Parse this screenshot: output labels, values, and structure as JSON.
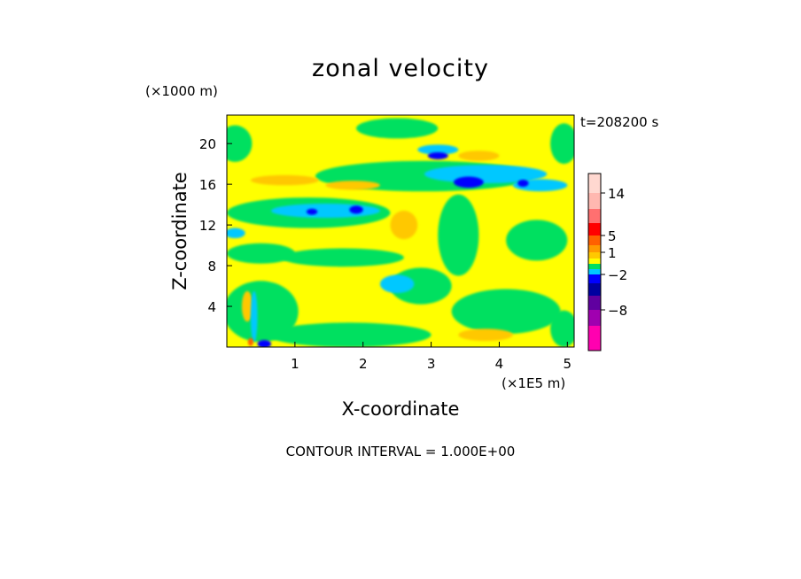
{
  "chart_data": {
    "type": "heatmap",
    "title": "zonal velocity",
    "xlabel": "X-coordinate",
    "ylabel": "Z-coordinate",
    "x_unit": "(×1E5 m)",
    "y_unit": "(×1000 m)",
    "time_label": "t=208200 s",
    "footer": "CONTOUR INTERVAL = 1.000E+00",
    "xlim": [
      0,
      5.1
    ],
    "ylim": [
      0,
      22.8
    ],
    "x_ticks": [
      {
        "value": 1,
        "label": "1"
      },
      {
        "value": 2,
        "label": "2"
      },
      {
        "value": 3,
        "label": "3"
      },
      {
        "value": 4,
        "label": "4"
      },
      {
        "value": 5,
        "label": "5"
      }
    ],
    "y_ticks": [
      {
        "value": 4,
        "label": "4"
      },
      {
        "value": 8,
        "label": "8"
      },
      {
        "value": 12,
        "label": "12"
      },
      {
        "value": 16,
        "label": "16"
      },
      {
        "value": 20,
        "label": "20"
      }
    ],
    "background_level_color": "#FFFF00",
    "colorbar": {
      "levels": [
        {
          "color": "#FFD8D0"
        },
        {
          "color": "#FFB8B0"
        },
        {
          "color": "#FF7070"
        },
        {
          "color": "#FF0000"
        },
        {
          "color": "#FF6000"
        },
        {
          "color": "#FF9A00"
        },
        {
          "color": "#FFC800"
        },
        {
          "color": "#FFFF00"
        },
        {
          "color": "#00E060"
        },
        {
          "color": "#00C8FF"
        },
        {
          "color": "#0000FF"
        },
        {
          "color": "#0000A0"
        },
        {
          "color": "#6000A0"
        },
        {
          "color": "#A000B0"
        },
        {
          "color": "#FF00B0"
        }
      ],
      "labels": [
        {
          "value": 14,
          "label": "14"
        },
        {
          "value": 5,
          "label": "5"
        },
        {
          "value": 1,
          "label": "1"
        },
        {
          "value": -2,
          "label": "−2"
        },
        {
          "value": -8,
          "label": "−8"
        }
      ]
    },
    "regions": [
      {
        "level": "green",
        "color": "#00E060",
        "x": 0.12,
        "z": 20.0,
        "rx": 0.25,
        "rz": 1.8
      },
      {
        "level": "green",
        "color": "#00E060",
        "x": 2.5,
        "z": 21.5,
        "rx": 0.6,
        "rz": 1.0
      },
      {
        "level": "green",
        "color": "#00E060",
        "x": 4.95,
        "z": 20.0,
        "rx": 0.2,
        "rz": 2.0
      },
      {
        "level": "green",
        "color": "#00E060",
        "x": 2.9,
        "z": 16.8,
        "rx": 1.6,
        "rz": 1.5
      },
      {
        "level": "green",
        "color": "#00E060",
        "x": 1.2,
        "z": 13.2,
        "rx": 1.2,
        "rz": 1.5
      },
      {
        "level": "green",
        "color": "#00E060",
        "x": 0.5,
        "z": 9.2,
        "rx": 0.5,
        "rz": 1.0
      },
      {
        "level": "green",
        "color": "#00E060",
        "x": 1.7,
        "z": 8.8,
        "rx": 0.9,
        "rz": 0.9
      },
      {
        "level": "green",
        "color": "#00E060",
        "x": 3.4,
        "z": 11.0,
        "rx": 0.3,
        "rz": 4.0
      },
      {
        "level": "green",
        "color": "#00E060",
        "x": 4.55,
        "z": 10.5,
        "rx": 0.45,
        "rz": 2.0
      },
      {
        "level": "green",
        "color": "#00E060",
        "x": 0.5,
        "z": 3.5,
        "rx": 0.55,
        "rz": 3.0
      },
      {
        "level": "green",
        "color": "#00E060",
        "x": 1.8,
        "z": 1.2,
        "rx": 1.2,
        "rz": 1.2
      },
      {
        "level": "green",
        "color": "#00E060",
        "x": 2.85,
        "z": 6.0,
        "rx": 0.45,
        "rz": 1.8
      },
      {
        "level": "green",
        "color": "#00E060",
        "x": 4.1,
        "z": 3.5,
        "rx": 0.8,
        "rz": 2.2
      },
      {
        "level": "green",
        "color": "#00E060",
        "x": 4.95,
        "z": 1.8,
        "rx": 0.2,
        "rz": 1.8
      },
      {
        "level": "orange",
        "color": "#FFC800",
        "x": 0.85,
        "z": 16.4,
        "rx": 0.5,
        "rz": 0.5
      },
      {
        "level": "orange",
        "color": "#FFC800",
        "x": 1.85,
        "z": 15.9,
        "rx": 0.4,
        "rz": 0.45
      },
      {
        "level": "orange",
        "color": "#FFC800",
        "x": 2.6,
        "z": 12.0,
        "rx": 0.2,
        "rz": 1.4
      },
      {
        "level": "orange",
        "color": "#FFC800",
        "x": 3.7,
        "z": 18.8,
        "rx": 0.3,
        "rz": 0.5
      },
      {
        "level": "orange",
        "color": "#FFC800",
        "x": 0.3,
        "z": 4.0,
        "rx": 0.08,
        "rz": 1.5
      },
      {
        "level": "orange",
        "color": "#FFC800",
        "x": 3.8,
        "z": 1.2,
        "rx": 0.4,
        "rz": 0.6
      },
      {
        "level": "cyan",
        "color": "#00C8FF",
        "x": 1.45,
        "z": 13.4,
        "rx": 0.8,
        "rz": 0.7
      },
      {
        "level": "cyan",
        "color": "#00C8FF",
        "x": 2.5,
        "z": 6.2,
        "rx": 0.25,
        "rz": 0.9
      },
      {
        "level": "cyan",
        "color": "#00C8FF",
        "x": 3.8,
        "z": 17.0,
        "rx": 0.9,
        "rz": 0.9
      },
      {
        "level": "cyan",
        "color": "#00C8FF",
        "x": 3.1,
        "z": 19.4,
        "rx": 0.3,
        "rz": 0.5
      },
      {
        "level": "cyan",
        "color": "#00C8FF",
        "x": 0.12,
        "z": 11.2,
        "rx": 0.15,
        "rz": 0.5
      },
      {
        "level": "cyan",
        "color": "#00C8FF",
        "x": 0.4,
        "z": 3.0,
        "rx": 0.05,
        "rz": 2.5
      },
      {
        "level": "cyan",
        "color": "#00C8FF",
        "x": 4.6,
        "z": 15.9,
        "rx": 0.4,
        "rz": 0.6
      },
      {
        "level": "blue",
        "color": "#0000FF",
        "x": 3.55,
        "z": 16.2,
        "rx": 0.22,
        "rz": 0.55
      },
      {
        "level": "blue",
        "color": "#0000FF",
        "x": 3.1,
        "z": 18.8,
        "rx": 0.15,
        "rz": 0.35
      },
      {
        "level": "blue",
        "color": "#0000FF",
        "x": 1.9,
        "z": 13.5,
        "rx": 0.1,
        "rz": 0.4
      },
      {
        "level": "blue",
        "color": "#0000FF",
        "x": 4.35,
        "z": 16.1,
        "rx": 0.08,
        "rz": 0.35
      },
      {
        "level": "blue",
        "color": "#0000FF",
        "x": 1.25,
        "z": 13.3,
        "rx": 0.08,
        "rz": 0.3
      },
      {
        "level": "blue",
        "color": "#0000FF",
        "x": 0.55,
        "z": 0.3,
        "rx": 0.1,
        "rz": 0.4
      },
      {
        "level": "red",
        "color": "#FF6000",
        "x": 0.35,
        "z": 0.5,
        "rx": 0.04,
        "rz": 0.4
      }
    ]
  }
}
